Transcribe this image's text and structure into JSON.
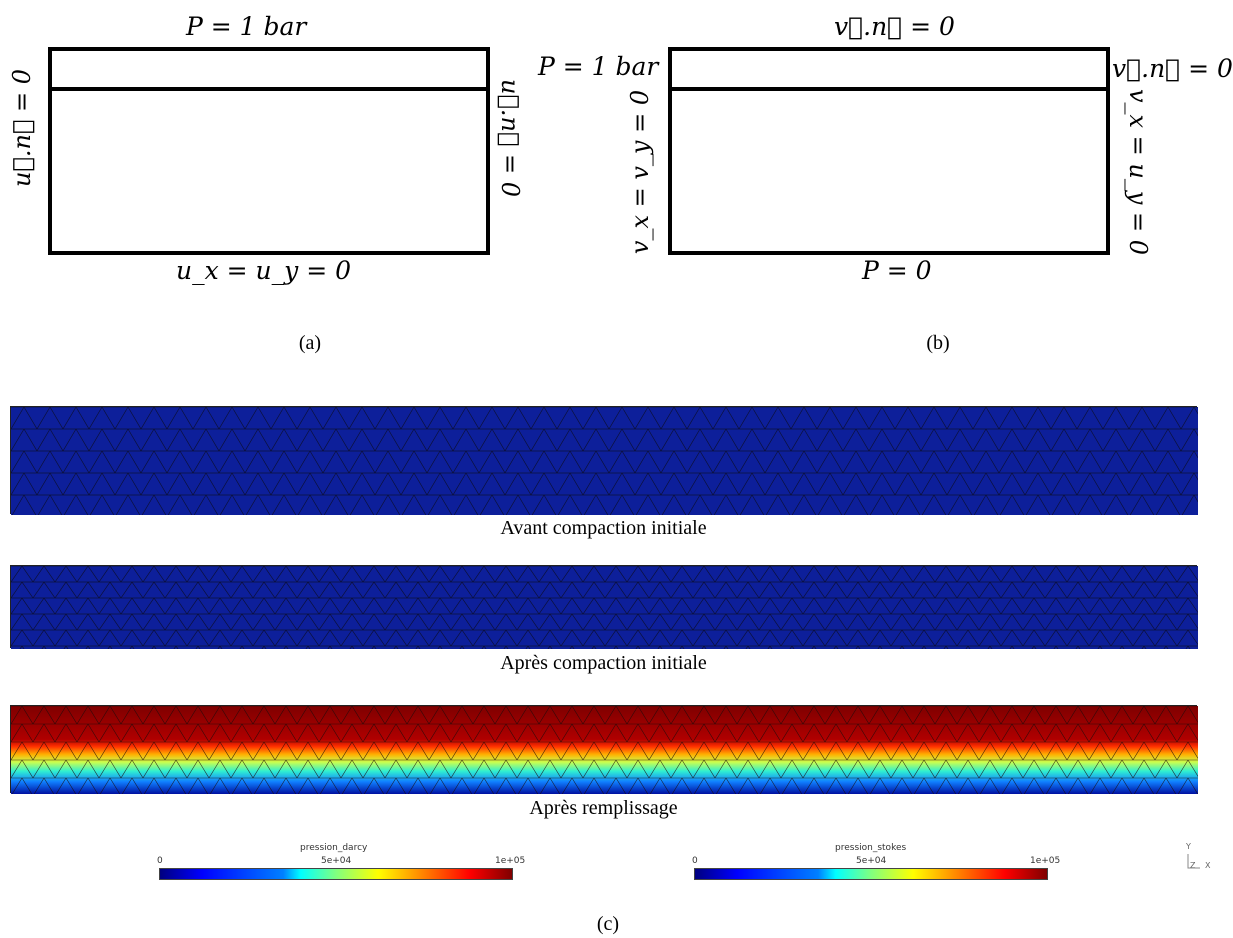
{
  "panel_a": {
    "top": "P = 1 bar",
    "left": "u⃗.n⃗ = 0",
    "right": "u⃗.n⃗ = 0",
    "bottom": "u_x = u_y = 0",
    "caption": "(a)"
  },
  "panel_b": {
    "top": "v⃗.n⃗ = 0",
    "top_left": "P = 1 bar",
    "top_right": "v⃗.n⃗ = 0",
    "left": "v_x = v_y = 0",
    "right": "v_x = u_y = 0",
    "bottom": "P = 0",
    "caption": "(b)"
  },
  "fields": [
    {
      "caption": "Avant compaction initiale",
      "state": "uniform"
    },
    {
      "caption": "Après compaction initiale",
      "state": "uniform"
    },
    {
      "caption": "Après remplissage",
      "state": "gradient"
    }
  ],
  "colorbars": [
    {
      "title": "pression_darcy",
      "min": "0",
      "mid": "5e+04",
      "max": "1e+05"
    },
    {
      "title": "pression_stokes",
      "min": "0",
      "mid": "5e+04",
      "max": "1e+05"
    }
  ],
  "axes_indicator": {
    "y": "Y",
    "z": "Z",
    "x": "X"
  },
  "caption_c": "(c)",
  "colors": {
    "field_low": "#0d1f9a",
    "field_high": "#8b0000"
  }
}
